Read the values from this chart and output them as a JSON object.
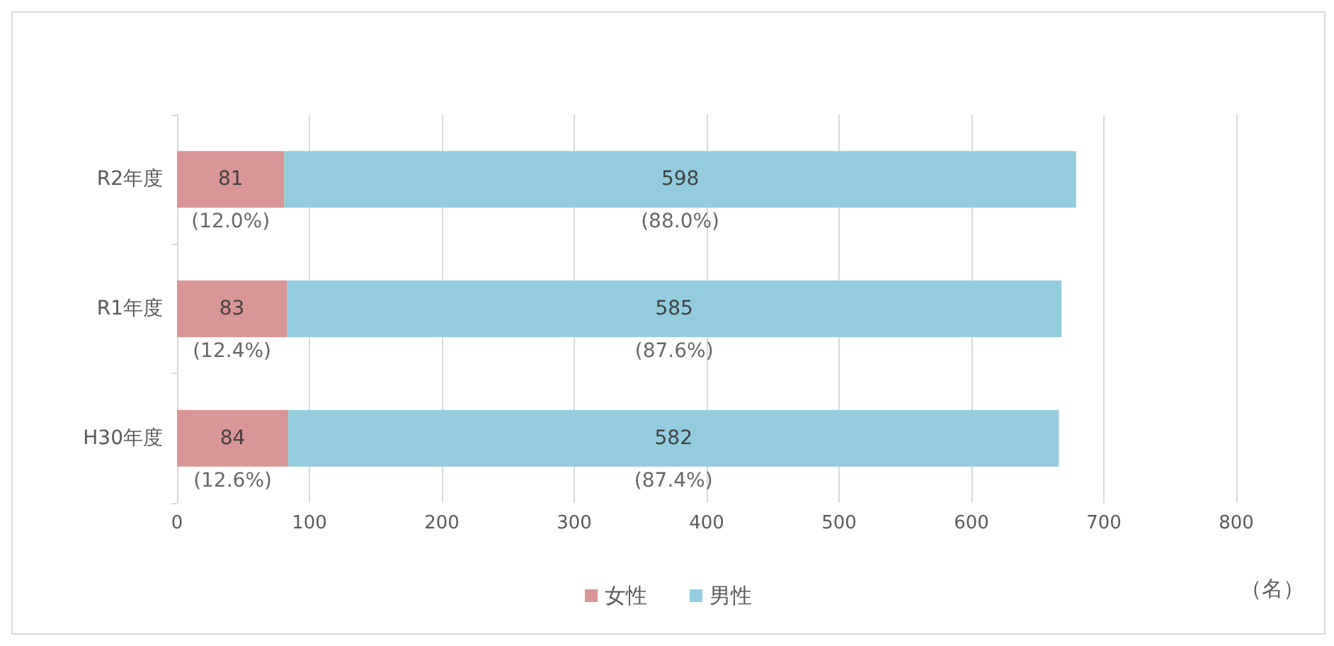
{
  "chart_data": {
    "type": "bar",
    "orientation": "horizontal",
    "stacked": true,
    "categories": [
      "R2年度",
      "R1年度",
      "H30年度"
    ],
    "series": [
      {
        "name": "女性",
        "color": "#d99694",
        "values": [
          81,
          83,
          84
        ]
      },
      {
        "name": "男性",
        "color": "#93cddd",
        "values": [
          598,
          585,
          582
        ]
      }
    ],
    "data_labels": true,
    "xlim": [
      0,
      800
    ],
    "xticks": [
      0,
      100,
      200,
      300,
      400,
      500,
      600,
      700,
      800
    ],
    "xlabel": "（名）",
    "grid": "x",
    "legend": "bottom",
    "annotations": [
      "(12.0%)",
      "(88.0%)",
      "(12.4%)",
      "(87.6%)",
      "(12.6%)",
      "(87.4%)"
    ]
  }
}
